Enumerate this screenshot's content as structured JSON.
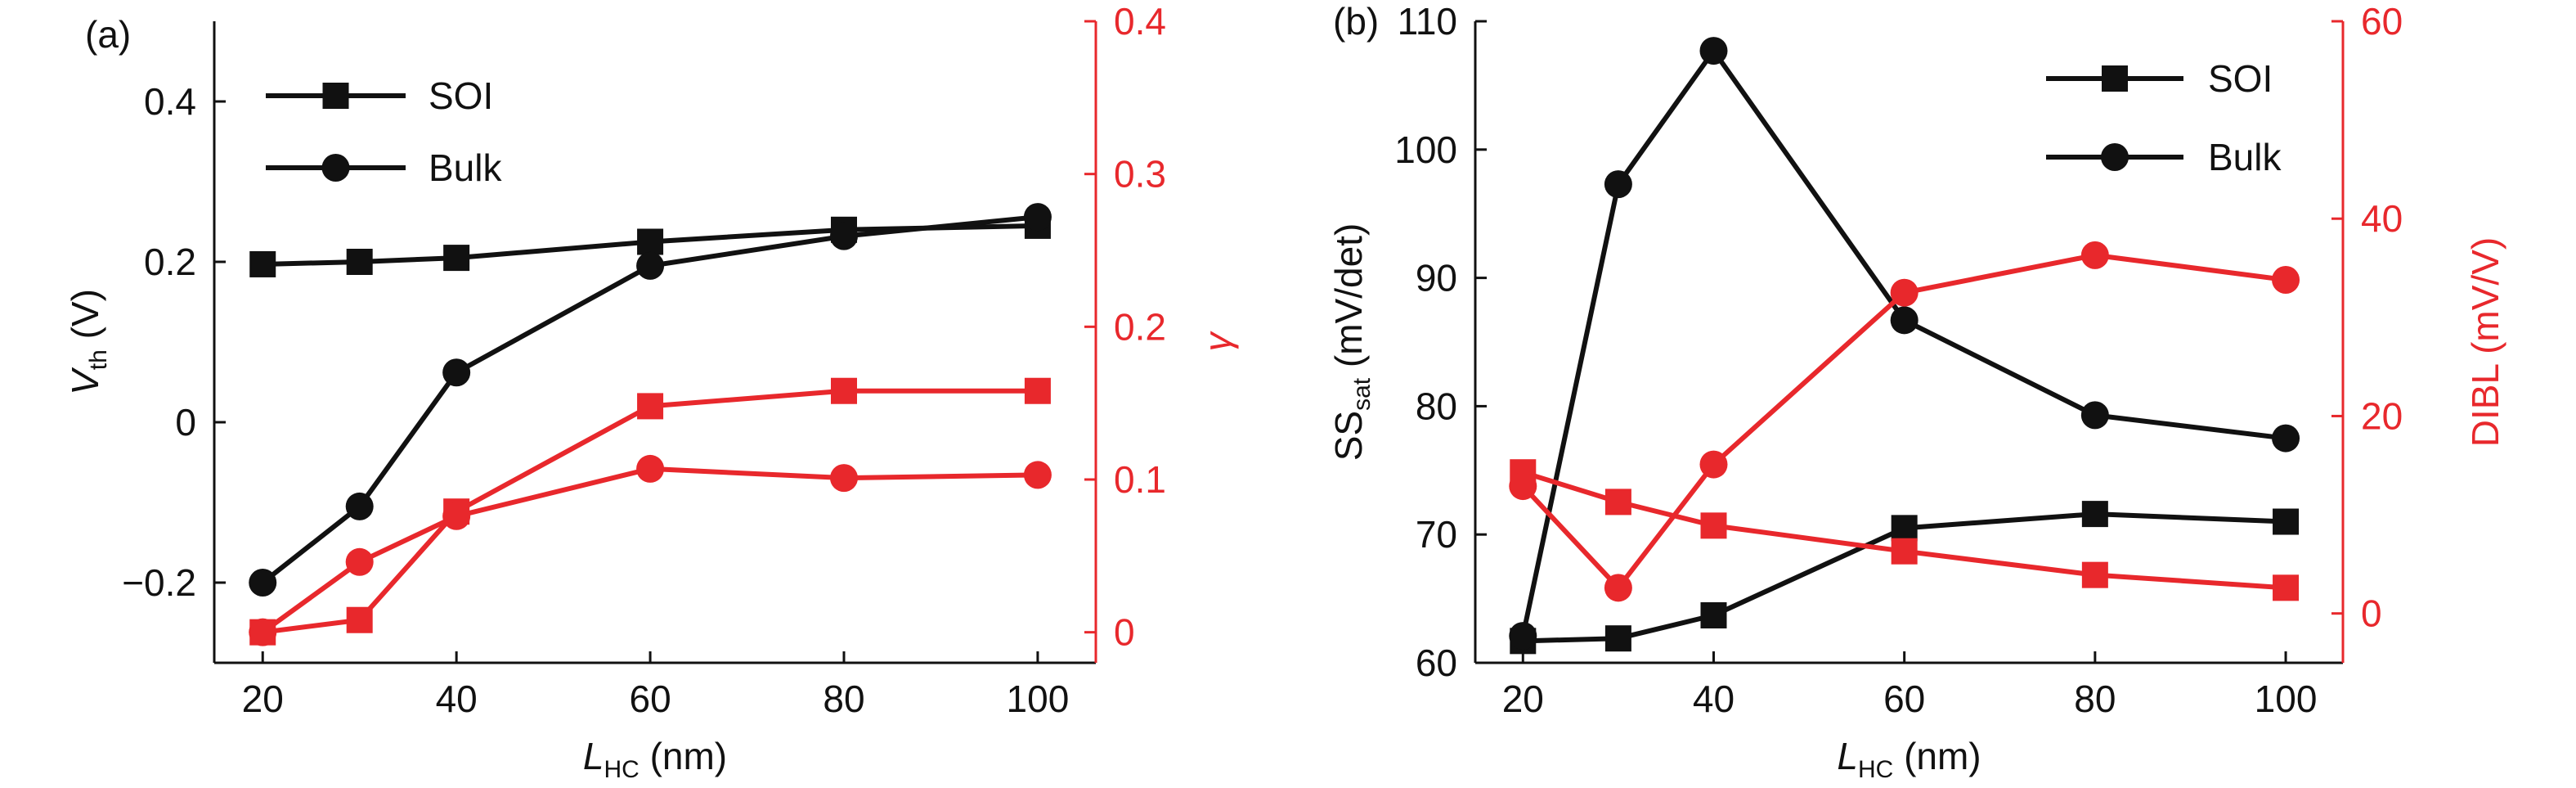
{
  "colors": {
    "black": "#111111",
    "red": "#e8282c"
  },
  "chart_data": [
    {
      "type": "line",
      "panel_label": "(a)",
      "xlabel": {
        "main": "L",
        "sub": "HC",
        "unit": " (nm)"
      },
      "ylabel_left": {
        "main": "V",
        "sub": "th",
        "unit": " (V)"
      },
      "ylabel_right": "γ",
      "x_ticks": [
        "20",
        "40",
        "60",
        "80",
        "100"
      ],
      "left_ticks": [
        "−0.2",
        "0",
        "0.2",
        "0.4"
      ],
      "right_ticks": [
        "0",
        "0.1",
        "0.2",
        "0.3",
        "0.4"
      ],
      "xlim": [
        15,
        106
      ],
      "ylim_left": [
        -0.3,
        0.5
      ],
      "ylim_right": [
        -0.02,
        0.4
      ],
      "legend": [
        {
          "label": "SOI",
          "marker": "square"
        },
        {
          "label": "Bulk",
          "marker": "circle"
        }
      ],
      "series": [
        {
          "name": "SOI Vth",
          "axis": "left",
          "color": "black",
          "marker": "square",
          "x": [
            20,
            30,
            40,
            60,
            80,
            100
          ],
          "y": [
            0.197,
            0.2,
            0.205,
            0.225,
            0.24,
            0.245
          ]
        },
        {
          "name": "Bulk Vth",
          "axis": "left",
          "color": "black",
          "marker": "circle",
          "x": [
            20,
            30,
            40,
            60,
            80,
            100
          ],
          "y": [
            -0.2,
            -0.105,
            0.062,
            0.195,
            0.232,
            0.256
          ]
        },
        {
          "name": "SOI γ",
          "axis": "right",
          "color": "red",
          "marker": "square",
          "x": [
            20,
            30,
            40,
            60,
            80,
            100
          ],
          "y": [
            0.0,
            0.008,
            0.079,
            0.148,
            0.158,
            0.158
          ]
        },
        {
          "name": "Bulk γ",
          "axis": "right",
          "color": "red",
          "marker": "circle",
          "x": [
            20,
            30,
            40,
            60,
            80,
            100
          ],
          "y": [
            0.0,
            0.046,
            0.076,
            0.107,
            0.101,
            0.103
          ]
        }
      ]
    },
    {
      "type": "line",
      "panel_label": "(b)",
      "xlabel": {
        "main": "L",
        "sub": "HC",
        "unit": " (nm)"
      },
      "ylabel_left": {
        "main": "SS",
        "sub": "sat",
        "unit": " (mV/det)"
      },
      "ylabel_right": "DIBL (mV/V)",
      "x_ticks": [
        "20",
        "40",
        "60",
        "80",
        "100"
      ],
      "left_ticks": [
        "60",
        "70",
        "80",
        "90",
        "100",
        "110"
      ],
      "right_ticks": [
        "0",
        "20",
        "40",
        "60"
      ],
      "xlim": [
        15,
        106
      ],
      "ylim_left": [
        60,
        110
      ],
      "ylim_right": [
        -5,
        60
      ],
      "legend": [
        {
          "label": "SOI",
          "marker": "square"
        },
        {
          "label": "Bulk",
          "marker": "circle"
        }
      ],
      "series": [
        {
          "name": "SOI SSsat",
          "axis": "left",
          "color": "black",
          "marker": "square",
          "x": [
            20,
            30,
            40,
            60,
            80,
            100
          ],
          "y": [
            61.7,
            61.9,
            63.7,
            70.5,
            71.6,
            71.0
          ]
        },
        {
          "name": "Bulk SSsat",
          "axis": "left",
          "color": "black",
          "marker": "circle",
          "x": [
            20,
            30,
            40,
            60,
            80,
            100
          ],
          "y": [
            62.1,
            97.3,
            107.7,
            86.7,
            79.3,
            77.5
          ]
        },
        {
          "name": "SOI DIBL",
          "axis": "right",
          "color": "red",
          "marker": "square",
          "x": [
            20,
            30,
            40,
            60,
            80,
            100
          ],
          "y": [
            14.3,
            11.3,
            8.9,
            6.3,
            3.9,
            2.6
          ]
        },
        {
          "name": "Bulk DIBL",
          "axis": "right",
          "color": "red",
          "marker": "circle",
          "x": [
            20,
            30,
            40,
            60,
            80,
            100
          ],
          "y": [
            12.9,
            2.6,
            15.1,
            32.5,
            36.3,
            33.8
          ]
        }
      ]
    }
  ]
}
